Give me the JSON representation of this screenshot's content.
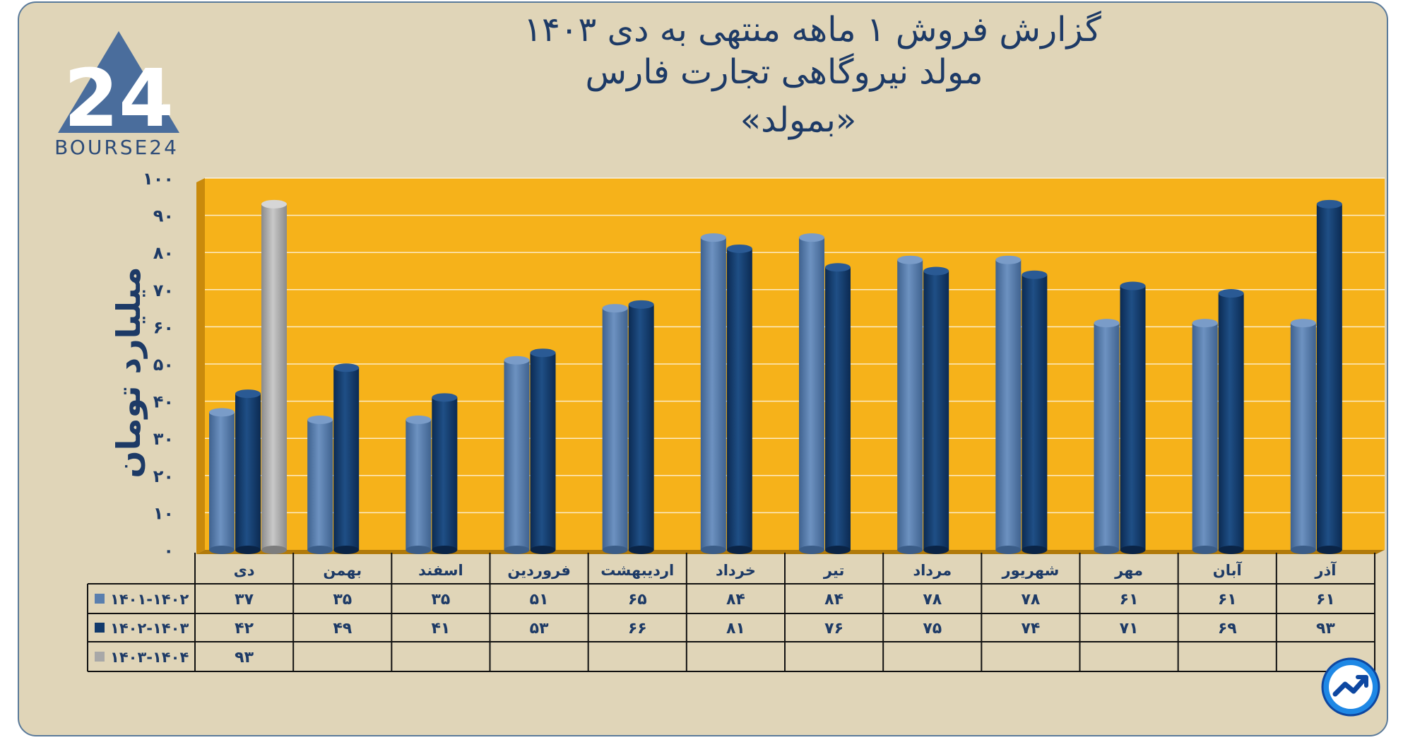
{
  "header": {
    "line1": "گزارش  فروش ۱ ماهه منتهی به دی ۱۴۰۳",
    "line2": "مولد نیروگاهی تجارت فارس",
    "line3": "«بمولد»"
  },
  "logo": {
    "text": "BOURSE24",
    "mark": "24"
  },
  "colors": {
    "plot_bg": "#f6b21a",
    "series1": "#5a7fae",
    "series2": "#123a6b",
    "series3": "#a8a8a8",
    "text": "#1d3a66"
  },
  "icons": {
    "badge": "trend-arrow-icon"
  },
  "chart_data": {
    "type": "bar",
    "ylabel": "میلیارد تومان",
    "ylim": [
      0,
      100
    ],
    "yticks": [
      0,
      10,
      20,
      30,
      40,
      50,
      60,
      70,
      80,
      90,
      100
    ],
    "ytick_labels": [
      "۰",
      "۱۰",
      "۲۰",
      "۳۰",
      "۴۰",
      "۵۰",
      "۶۰",
      "۷۰",
      "۸۰",
      "۹۰",
      "۱۰۰"
    ],
    "grid": true,
    "categories": [
      "دی",
      "بهمن",
      "اسفند",
      "فروردین",
      "اردیبهشت",
      "خرداد",
      "تیر",
      "مرداد",
      "شهریور",
      "مهر",
      "آبان",
      "آذر"
    ],
    "series": [
      {
        "name": "۱۴۰۱-۱۴۰۲",
        "values": [
          37,
          35,
          35,
          51,
          65,
          84,
          84,
          78,
          78,
          61,
          61,
          61
        ],
        "labels": [
          "۳۷",
          "۳۵",
          "۳۵",
          "۵۱",
          "۶۵",
          "۸۴",
          "۸۴",
          "۷۸",
          "۷۸",
          "۶۱",
          "۶۱",
          "۶۱"
        ]
      },
      {
        "name": "۱۴۰۲-۱۴۰۳",
        "values": [
          42,
          49,
          41,
          53,
          66,
          81,
          76,
          75,
          74,
          71,
          69,
          93
        ],
        "labels": [
          "۴۲",
          "۴۹",
          "۴۱",
          "۵۳",
          "۶۶",
          "۸۱",
          "۷۶",
          "۷۵",
          "۷۴",
          "۷۱",
          "۶۹",
          "۹۳"
        ]
      },
      {
        "name": "۱۴۰۳-۱۴۰۴",
        "values": [
          93,
          null,
          null,
          null,
          null,
          null,
          null,
          null,
          null,
          null,
          null,
          null
        ],
        "labels": [
          "۹۳",
          "",
          "",
          "",
          "",
          "",
          "",
          "",
          "",
          "",
          "",
          ""
        ]
      }
    ]
  }
}
